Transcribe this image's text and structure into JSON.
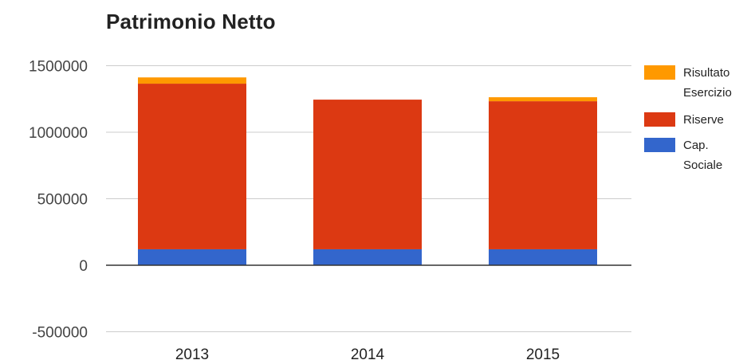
{
  "chart_data": {
    "type": "bar",
    "stacked": true,
    "title": "Patrimonio Netto",
    "categories": [
      "2013",
      "2014",
      "2015"
    ],
    "series": [
      {
        "name": "Cap. Sociale",
        "color": "#3366cc",
        "values": [
          120000,
          120000,
          120000
        ]
      },
      {
        "name": "Riserve",
        "color": "#dc3912",
        "values": [
          1245000,
          1125000,
          1113000
        ]
      },
      {
        "name": "Risultato Esercizio",
        "color": "#ff9900",
        "values": [
          47000,
          0,
          30000
        ]
      }
    ],
    "legend_order": [
      "Risultato Esercizio",
      "Riserve",
      "Cap. Sociale"
    ],
    "legend_lines": [
      [
        "Risultato",
        "Esercizio"
      ],
      [
        "Riserve"
      ],
      [
        "Cap.",
        "Sociale"
      ]
    ],
    "yticks": [
      "1500000",
      "1000000",
      "500000",
      "0",
      "-500000"
    ],
    "ytick_values": [
      1500000,
      1000000,
      500000,
      0,
      -500000
    ],
    "ylim": [
      -500000,
      1500000
    ],
    "legend_position": "right",
    "grid": true
  }
}
